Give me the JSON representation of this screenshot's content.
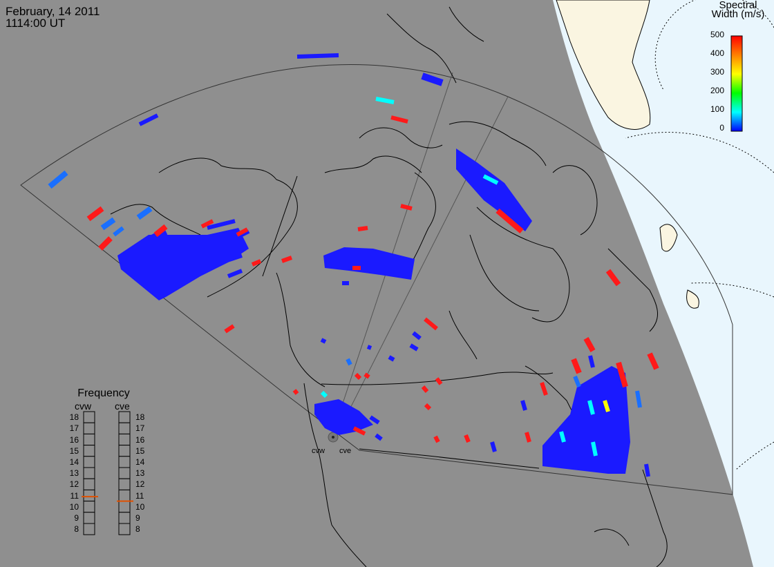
{
  "header": {
    "date": "February, 14 2011",
    "time": "1114:00 UT"
  },
  "colorbar": {
    "title_line1": "Spectral",
    "title_line2": "Width (m/s)",
    "ticks": [
      "500",
      "400",
      "300",
      "200",
      "100",
      "0"
    ],
    "stops": [
      "#ff0000",
      "#ff8000",
      "#ffff00",
      "#00ff00",
      "#00ffff",
      "#0000ff"
    ]
  },
  "frequency_panel": {
    "title": "Frequency",
    "radars": [
      {
        "name": "cvw",
        "marker_mhz": 10.9
      },
      {
        "name": "cve",
        "marker_mhz": 10.5
      }
    ],
    "scale": [
      "18",
      "17",
      "16",
      "15",
      "14",
      "13",
      "12",
      "11",
      "10",
      "9",
      "8"
    ],
    "marker_color": "#e05000"
  },
  "radar_sites": [
    "cvw",
    "cve"
  ],
  "colors": {
    "background": "#8f8f8f",
    "coast": "#000000",
    "sunlit_land": "#faf5e1",
    "sunlit_ocean": "#e9f6fd",
    "grid": "#000000"
  }
}
